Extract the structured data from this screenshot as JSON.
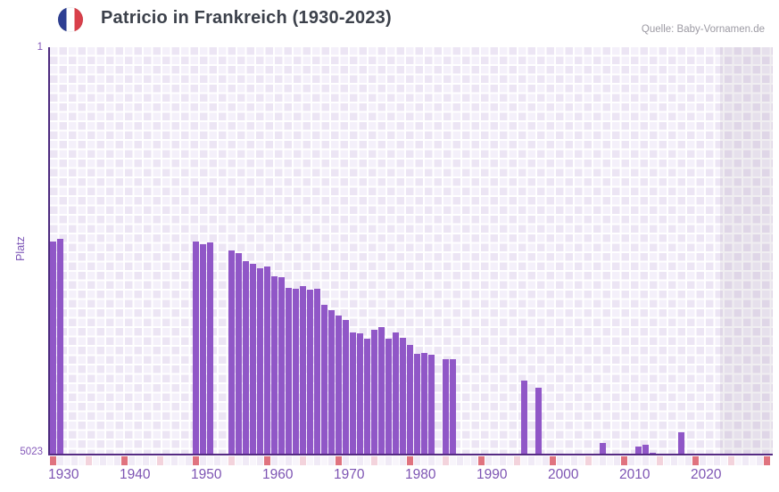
{
  "header": {
    "title": "Patricio in Frankreich (1930-2023)",
    "source": "Quelle: Baby-Vornamen.de",
    "flag_icon": "france-flag-circle-icon"
  },
  "chart_data": {
    "type": "bar",
    "title": "Patricio in Frankreich (1930-2023)",
    "xlabel": "",
    "ylabel": "Platz",
    "legend": "none",
    "grid": "checkered lavender background with white gridlines",
    "y_axis": {
      "top_tick_label": "1",
      "bottom_tick_label": "5023",
      "min": 1,
      "max": 5023,
      "inverted": true
    },
    "x_axis": {
      "tick_labels": [
        "1930",
        "1940",
        "1950",
        "1960",
        "1970",
        "1980",
        "1990",
        "2000",
        "2010",
        "2020"
      ],
      "range_years": [
        1929,
        2029
      ]
    },
    "bar_color": "#9057c7",
    "no_data_shaded_region": {
      "from_year": 2022,
      "to_year": 2029
    },
    "series": [
      {
        "year": 1929,
        "rank": 2400
      },
      {
        "year": 1930,
        "rank": 2370
      },
      {
        "year": 1949,
        "rank": 2405
      },
      {
        "year": 1950,
        "rank": 2435
      },
      {
        "year": 1951,
        "rank": 2410
      },
      {
        "year": 1954,
        "rank": 2510
      },
      {
        "year": 1955,
        "rank": 2540
      },
      {
        "year": 1956,
        "rank": 2645
      },
      {
        "year": 1957,
        "rank": 2675
      },
      {
        "year": 1958,
        "rank": 2730
      },
      {
        "year": 1959,
        "rank": 2715
      },
      {
        "year": 1960,
        "rank": 2830
      },
      {
        "year": 1961,
        "rank": 2840
      },
      {
        "year": 1962,
        "rank": 2970
      },
      {
        "year": 1963,
        "rank": 2990
      },
      {
        "year": 1964,
        "rank": 2950
      },
      {
        "year": 1965,
        "rank": 3000
      },
      {
        "year": 1966,
        "rank": 2990
      },
      {
        "year": 1967,
        "rank": 3180
      },
      {
        "year": 1968,
        "rank": 3255
      },
      {
        "year": 1969,
        "rank": 3320
      },
      {
        "year": 1970,
        "rank": 3370
      },
      {
        "year": 1971,
        "rank": 3530
      },
      {
        "year": 1972,
        "rank": 3540
      },
      {
        "year": 1973,
        "rank": 3600
      },
      {
        "year": 1974,
        "rank": 3490
      },
      {
        "year": 1975,
        "rank": 3460
      },
      {
        "year": 1976,
        "rank": 3605
      },
      {
        "year": 1977,
        "rank": 3530
      },
      {
        "year": 1978,
        "rank": 3595
      },
      {
        "year": 1979,
        "rank": 3675
      },
      {
        "year": 1980,
        "rank": 3790
      },
      {
        "year": 1981,
        "rank": 3775
      },
      {
        "year": 1982,
        "rank": 3805
      },
      {
        "year": 1984,
        "rank": 3860
      },
      {
        "year": 1985,
        "rank": 3860
      },
      {
        "year": 1995,
        "rank": 4115
      },
      {
        "year": 1997,
        "rank": 4210
      },
      {
        "year": 2006,
        "rank": 4895
      },
      {
        "year": 2011,
        "rank": 4940
      },
      {
        "year": 2012,
        "rank": 4915
      },
      {
        "year": 2013,
        "rank": 5015
      },
      {
        "year": 2017,
        "rank": 4760
      }
    ],
    "timeline_strip": {
      "description": "year cells under x-axis",
      "start_year": 1929,
      "end_year": 2029,
      "decade_marker_years_ending_in": 9,
      "decade_marker_color": "#e0737f",
      "half_decade_marker_years_ending_in": 4,
      "half_decade_marker_color": "#f3d3dc",
      "default_colors": [
        "#f0eaf6",
        "#f8f5fb"
      ]
    }
  }
}
